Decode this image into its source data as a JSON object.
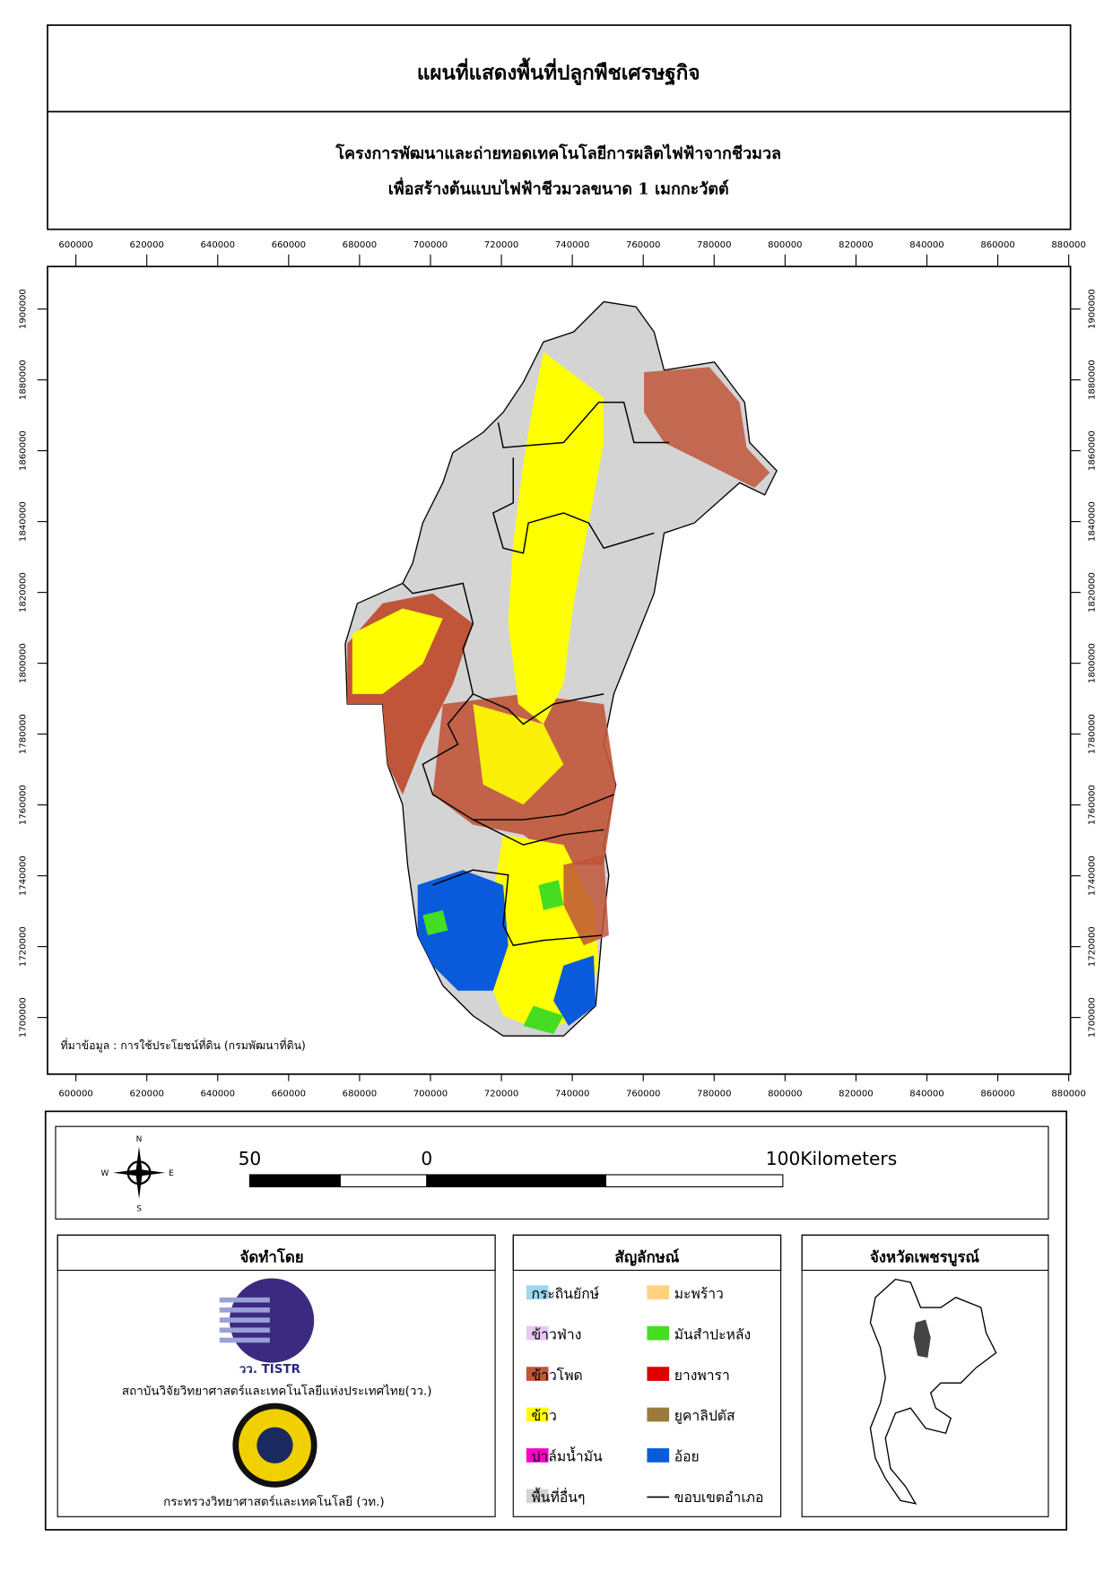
{
  "header": {
    "title": "แผนที่แสดงพื้นที่ปลูกพืชเศรษฐกิจ",
    "subtitle_lines": [
      "โครงการพัฒนาและถ่ายทอดเทคโนโลยีการผลิตไฟฟ้าจากชีวมวล",
      "เพื่อสร้างต้นแบบไฟฟ้าชีวมวลขนาด 1 เมกกะวัตต์"
    ]
  },
  "map": {
    "xlim": [
      592000,
      880500
    ],
    "ylim": [
      1684000,
      1912000
    ],
    "xticks": [
      600000,
      620000,
      640000,
      660000,
      680000,
      700000,
      720000,
      740000,
      760000,
      780000,
      800000,
      820000,
      840000,
      860000,
      880000
    ],
    "yticks": [
      1700000,
      1720000,
      1740000,
      1760000,
      1780000,
      1800000,
      1820000,
      1840000,
      1860000,
      1880000,
      1900000
    ],
    "source_note": "ที่มาข้อมูล : การใช้ประโยชน์ที่ดิน  (กรมพัฒนาที่ดิน)"
  },
  "compass": {
    "north": "N",
    "east": "E",
    "south": "S",
    "west": "W"
  },
  "scale_bar": {
    "labels": [
      "50",
      "0",
      "100Kilometers"
    ]
  },
  "producer": {
    "title": "จัดทำโดย",
    "logo_text": "วว. TISTR",
    "org1": "สถาบันวิจัยวิทยาศาสตร์และเทคโนโลยีแห่งประเทศไทย(วว.)",
    "org2": "กระทรวงวิทยาศาสตร์และเทคโนโลยี (วท.)"
  },
  "legend": {
    "title": "สัญลักษณ์",
    "items": [
      {
        "label": "กระถินยักษ์",
        "color": "#99d8f0"
      },
      {
        "label": "มะพร้าว",
        "color": "#ffd280"
      },
      {
        "label": "ข้าวฟ่าง",
        "color": "#e6c8f0"
      },
      {
        "label": "มันสำปะหลัง",
        "color": "#44dd22"
      },
      {
        "label": "ข้าวโพด",
        "color": "#c0553a"
      },
      {
        "label": "ยางพารา",
        "color": "#e00000"
      },
      {
        "label": "ข้าว",
        "color": "#ffff00"
      },
      {
        "label": "ยูคาลิปตัส",
        "color": "#9c7a3c"
      },
      {
        "label": "ปาล์มน้ำมัน",
        "color": "#ff00c8"
      },
      {
        "label": "อ้อย",
        "color": "#0a5adc"
      },
      {
        "label": "พื้นที่อื่นๆ",
        "color": "#d4d4d4"
      },
      {
        "label": "ขอบเขตอำเภอ",
        "color": "#000000",
        "symbol": "line"
      }
    ]
  },
  "inset": {
    "title": "จังหวัดเพชรบูรณ์"
  }
}
